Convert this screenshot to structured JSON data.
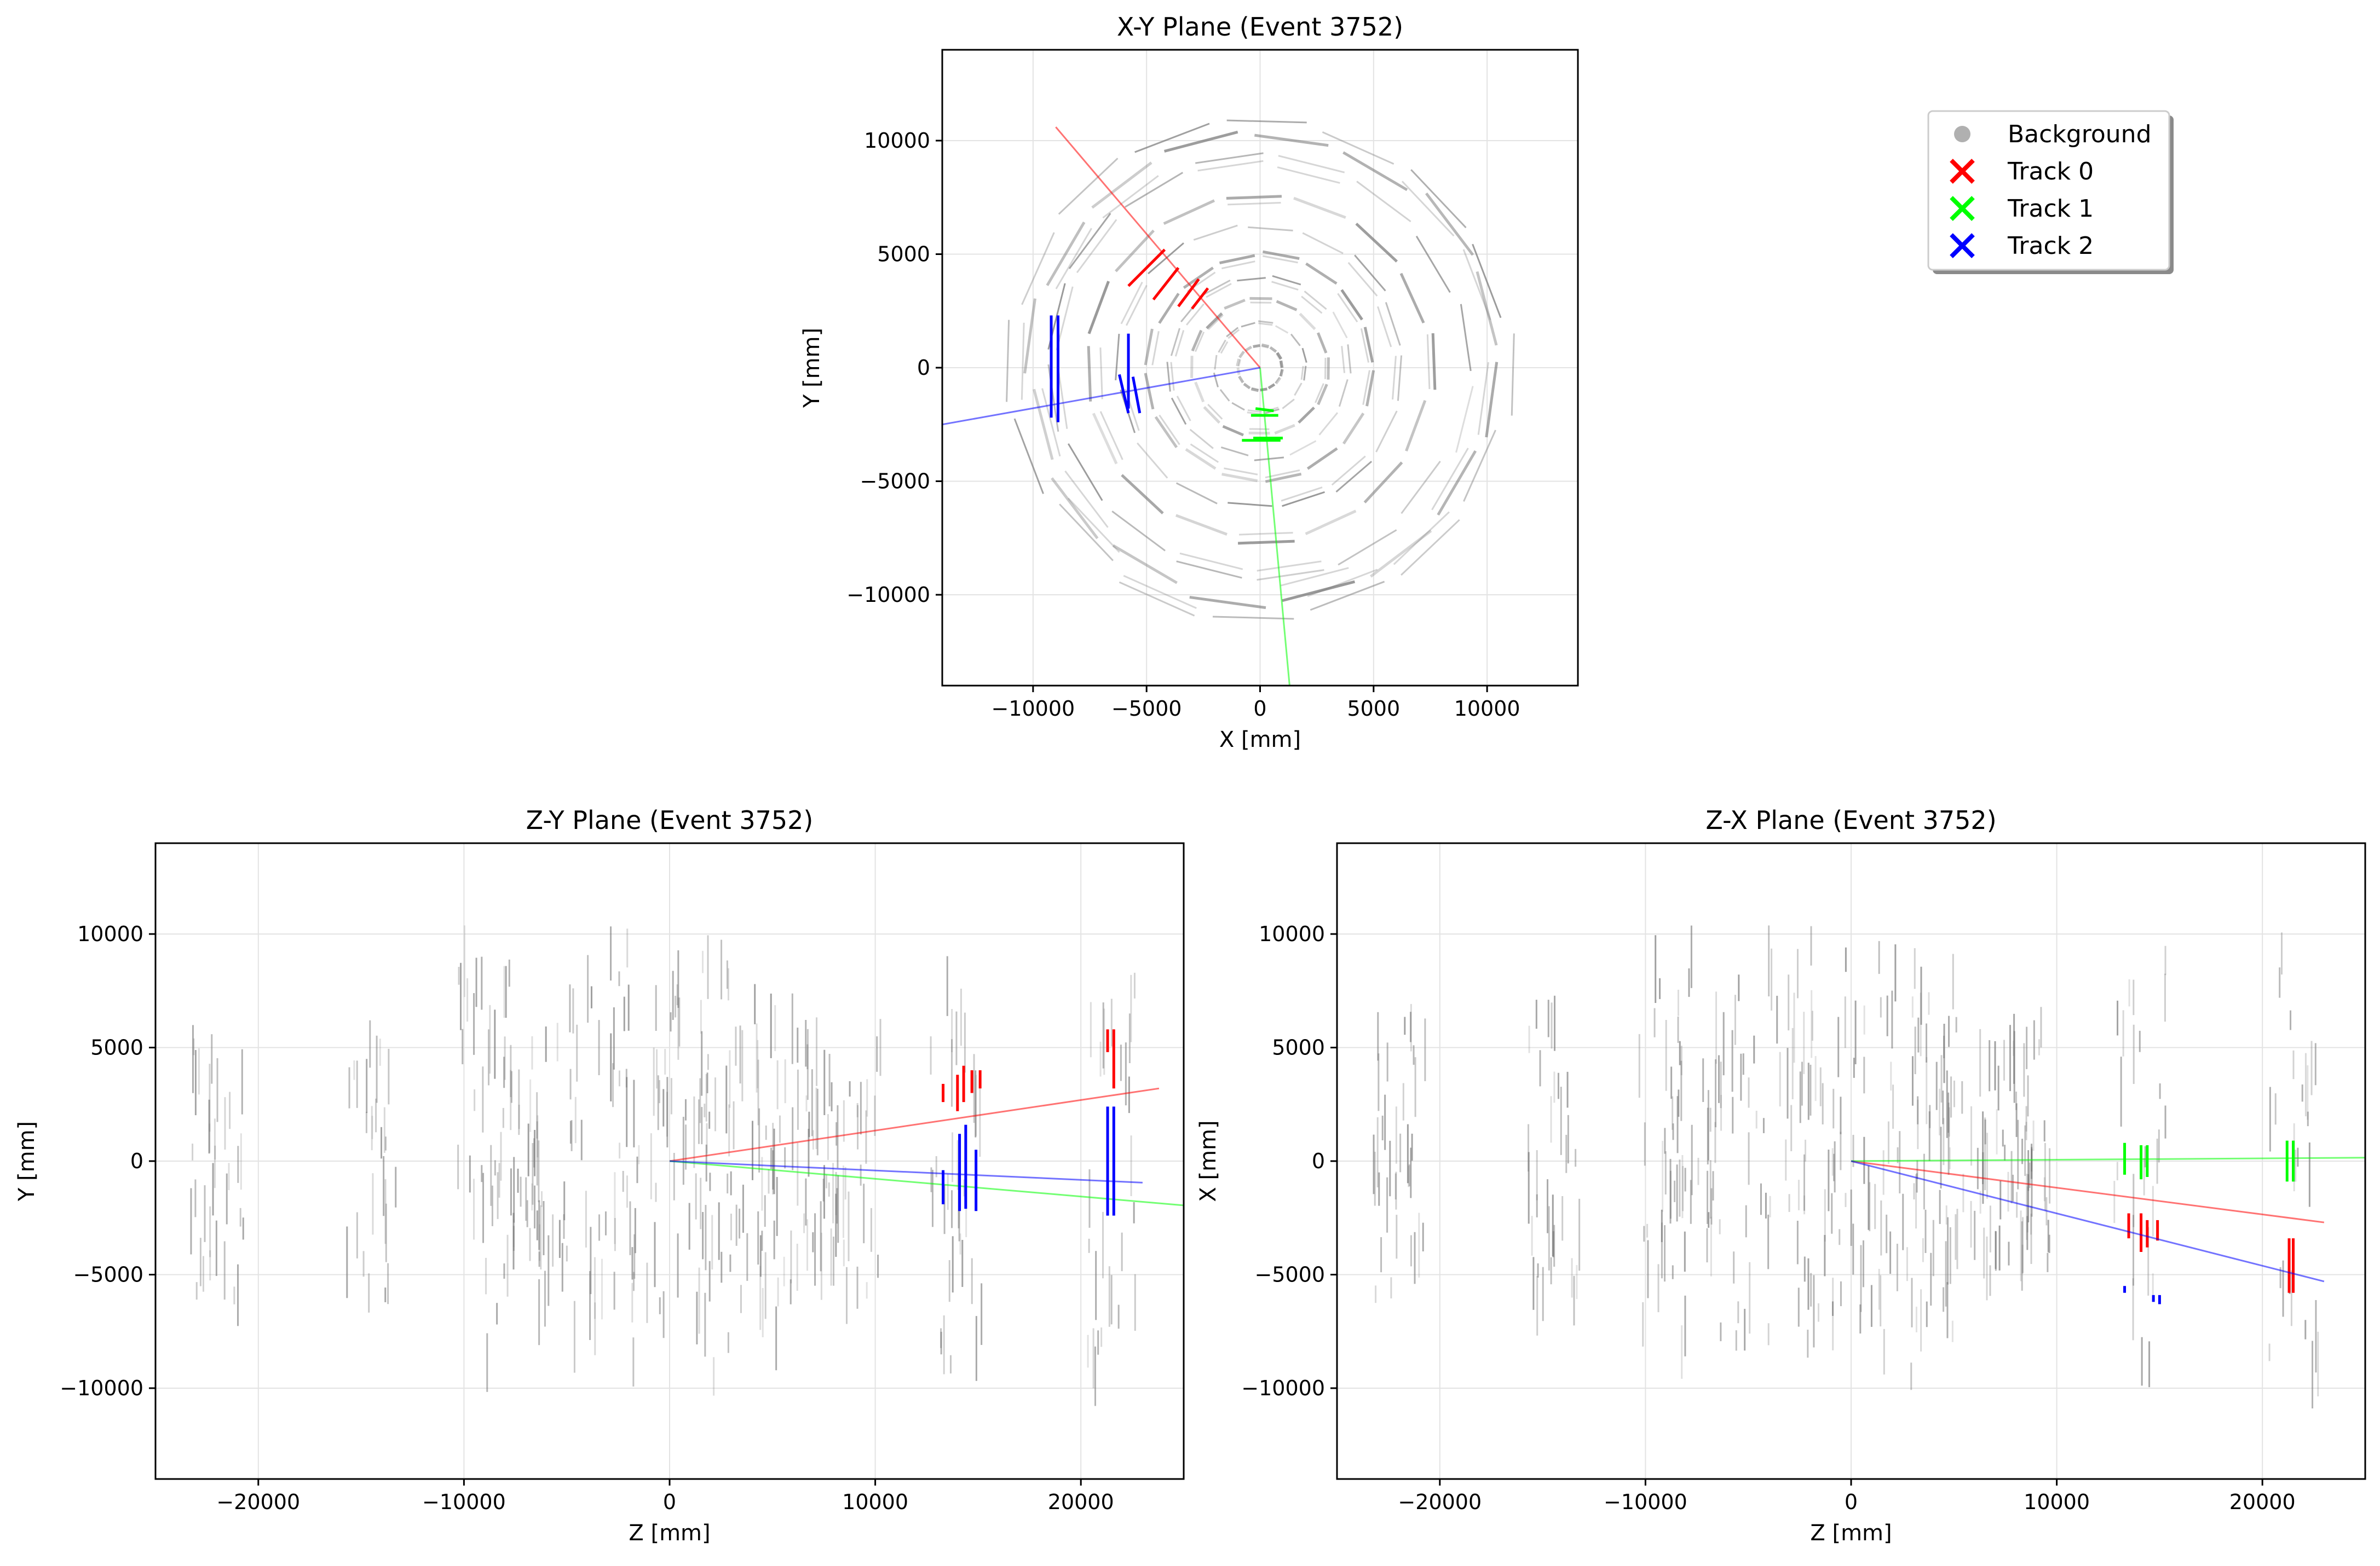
{
  "legend": {
    "placement": "top-right",
    "entries": [
      {
        "label": "Background",
        "marker": "circle",
        "color": "#b0b0b0"
      },
      {
        "label": "Track 0",
        "marker": "x",
        "color": "#ff0000"
      },
      {
        "label": "Track 1",
        "marker": "x",
        "color": "#00ff00"
      },
      {
        "label": "Track 2",
        "marker": "x",
        "color": "#0000ff"
      }
    ]
  },
  "chart_data": [
    {
      "id": "xy",
      "type": "scatter",
      "title": "X-Y Plane (Event 3752)",
      "xlabel": "X [mm]",
      "ylabel": "Y [mm]",
      "xlim": [
        -14000,
        14000
      ],
      "ylim": [
        -14000,
        14000
      ],
      "xticks": [
        -10000,
        -5000,
        0,
        5000,
        10000
      ],
      "yticks": [
        -10000,
        -5000,
        0,
        5000,
        10000
      ],
      "xtick_labels": [
        "−10000",
        "−5000",
        "0",
        "5000",
        "10000"
      ],
      "ytick_labels": [
        "−10000",
        "−5000",
        "0",
        "5000",
        "10000"
      ],
      "grid": true,
      "background": {
        "rings": [
          1000,
          2000,
          3000,
          4000,
          5000,
          6300,
          7600,
          9200,
          10300,
          11000
        ],
        "polygon_sides": 16
      },
      "tracks": [
        {
          "name": "Track 0",
          "color": "#ff0000",
          "line": [
            [
              0,
              0
            ],
            [
              -9000,
              10600
            ]
          ],
          "hits": [
            [
              -4200,
              5200,
              -5800,
              3600
            ],
            [
              -3600,
              4400,
              -4700,
              3000
            ],
            [
              -2700,
              3900,
              -3600,
              2700
            ],
            [
              -2300,
              3500,
              -3000,
              2600
            ]
          ]
        },
        {
          "name": "Track 1",
          "color": "#00ff00",
          "line": [
            [
              0,
              0
            ],
            [
              1300,
              -14000
            ]
          ],
          "hits": [
            [
              -400,
              -2100,
              800,
              -2100
            ],
            [
              -200,
              -1800,
              600,
              -1900
            ],
            [
              -800,
              -3200,
              900,
              -3200
            ],
            [
              -300,
              -3100,
              1000,
              -3100
            ]
          ]
        },
        {
          "name": "Track 2",
          "color": "#0000ff",
          "line": [
            [
              0,
              0
            ],
            [
              -14000,
              -2500
            ]
          ],
          "hits": [
            [
              -8900,
              2300,
              -8900,
              -2400
            ],
            [
              -9200,
              2300,
              -9200,
              -2200
            ],
            [
              -5800,
              1500,
              -5800,
              -1800
            ],
            [
              -6200,
              -300,
              -5800,
              -2000
            ],
            [
              -5600,
              -400,
              -5300,
              -2000
            ]
          ]
        }
      ]
    },
    {
      "id": "zy",
      "type": "scatter",
      "title": "Z-Y Plane (Event 3752)",
      "xlabel": "Z [mm]",
      "ylabel": "Y [mm]",
      "xlim": [
        -25000,
        25000
      ],
      "ylim": [
        -14000,
        14000
      ],
      "xticks": [
        -20000,
        -10000,
        0,
        10000,
        20000
      ],
      "yticks": [
        -10000,
        -5000,
        0,
        5000,
        10000
      ],
      "xtick_labels": [
        "−20000",
        "−10000",
        "0",
        "10000",
        "20000"
      ],
      "ytick_labels": [
        "−10000",
        "−5000",
        "0",
        "5000",
        "10000"
      ],
      "grid": true,
      "tracks": [
        {
          "name": "Track 0",
          "color": "#ff0000",
          "line": [
            [
              0,
              0
            ],
            [
              23800,
              3200
            ]
          ],
          "hits": [
            [
              13300,
              3400,
              13300,
              2600
            ],
            [
              14000,
              3800,
              14000,
              2200
            ],
            [
              14300,
              4200,
              14300,
              2600
            ],
            [
              14700,
              4000,
              14700,
              3000
            ],
            [
              15100,
              4000,
              15100,
              3200
            ],
            [
              21300,
              5800,
              21300,
              4800
            ],
            [
              21600,
              5800,
              21600,
              3200
            ]
          ]
        },
        {
          "name": "Track 1",
          "color": "#00ff00",
          "line": [
            [
              0,
              0
            ],
            [
              25000,
              -1950
            ]
          ],
          "hits": []
        },
        {
          "name": "Track 2",
          "color": "#0000ff",
          "line": [
            [
              0,
              0
            ],
            [
              23000,
              -950
            ]
          ],
          "hits": [
            [
              13300,
              -400,
              13300,
              -1900
            ],
            [
              14100,
              1200,
              14100,
              -2200
            ],
            [
              14400,
              1600,
              14400,
              -2100
            ],
            [
              14900,
              500,
              14900,
              -2200
            ],
            [
              21300,
              2400,
              21300,
              -2400
            ],
            [
              21600,
              2400,
              21600,
              -2400
            ]
          ]
        }
      ]
    },
    {
      "id": "zx",
      "type": "scatter",
      "title": "Z-X Plane (Event 3752)",
      "xlabel": "Z [mm]",
      "ylabel": "X [mm]",
      "xlim": [
        -25000,
        25000
      ],
      "ylim": [
        -14000,
        14000
      ],
      "xticks": [
        -20000,
        -10000,
        0,
        10000,
        20000
      ],
      "yticks": [
        -10000,
        -5000,
        0,
        5000,
        10000
      ],
      "xtick_labels": [
        "−20000",
        "−10000",
        "0",
        "10000",
        "20000"
      ],
      "ytick_labels": [
        "−10000",
        "−5000",
        "0",
        "5000",
        "10000"
      ],
      "grid": true,
      "tracks": [
        {
          "name": "Track 0",
          "color": "#ff0000",
          "line": [
            [
              0,
              0
            ],
            [
              23000,
              -2700
            ]
          ],
          "hits": [
            [
              13500,
              -2300,
              13500,
              -3400
            ],
            [
              14100,
              -2300,
              14100,
              -4000
            ],
            [
              14400,
              -2600,
              14400,
              -3800
            ],
            [
              14900,
              -2600,
              14900,
              -3500
            ],
            [
              21300,
              -3400,
              21300,
              -5800
            ],
            [
              21500,
              -3400,
              21500,
              -5800
            ]
          ]
        },
        {
          "name": "Track 1",
          "color": "#00ff00",
          "line": [
            [
              0,
              0
            ],
            [
              25000,
              150
            ]
          ],
          "hits": [
            [
              13300,
              800,
              13300,
              -600
            ],
            [
              14100,
              700,
              14100,
              -800
            ],
            [
              14400,
              700,
              14400,
              -700
            ],
            [
              21200,
              900,
              21200,
              -900
            ],
            [
              21500,
              900,
              21500,
              -900
            ]
          ]
        },
        {
          "name": "Track 2",
          "color": "#0000ff",
          "line": [
            [
              0,
              0
            ],
            [
              23000,
              -5300
            ]
          ],
          "hits": [
            [
              13300,
              -5500,
              13300,
              -5800
            ],
            [
              14700,
              -5900,
              14700,
              -6200
            ],
            [
              15000,
              -5900,
              15000,
              -6300
            ]
          ]
        }
      ]
    }
  ]
}
